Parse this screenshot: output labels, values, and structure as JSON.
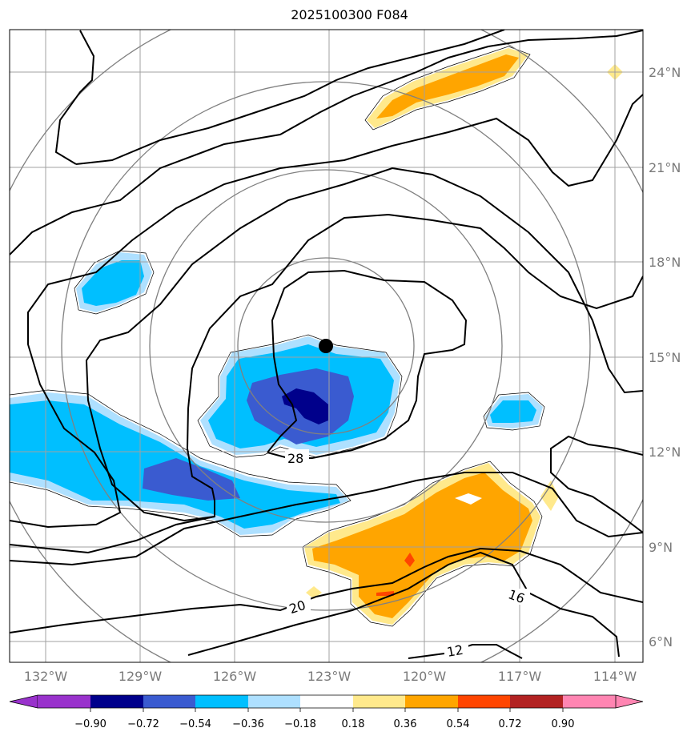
{
  "title": "2025100300 F084",
  "map": {
    "lon_labels": [
      "132°W",
      "129°W",
      "126°W",
      "123°W",
      "120°W",
      "117°W",
      "114°W"
    ],
    "lat_labels": [
      "24°N",
      "21°N",
      "18°N",
      "15°N",
      "12°N",
      "9°N",
      "6°N"
    ],
    "storm_center": {
      "lon": "123°W",
      "lat": "15.3°N"
    },
    "contour_labels": [
      "28",
      "20",
      "16",
      "12"
    ],
    "range_rings": 4,
    "colors": {
      "grid": "#a0a0a0",
      "ring": "#808080",
      "contour": "#000000",
      "land_text": "#7a7a7a"
    }
  },
  "colorbar": {
    "labels": [
      "−0.90",
      "−0.72",
      "−0.54",
      "−0.36",
      "−0.18",
      "0.18",
      "0.36",
      "0.54",
      "0.72",
      "0.90"
    ],
    "colors": [
      "#9932cc",
      "#00008b",
      "#3a5bd0",
      "#00bfff",
      "#aee0ff",
      "#ffffff",
      "#ffe98c",
      "#ffa500",
      "#ff4500",
      "#b22222",
      "#ff85b2"
    ]
  }
}
